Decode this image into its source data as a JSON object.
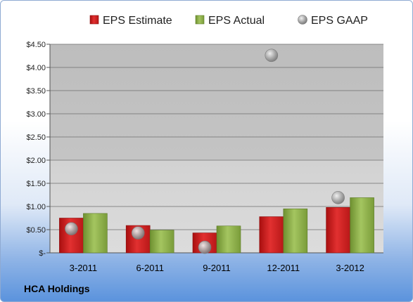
{
  "company": "HCA Holdings",
  "chart_data": {
    "type": "bar",
    "categories": [
      "3-2011",
      "6-2011",
      "9-2011",
      "12-2011",
      "3-2012"
    ],
    "series": [
      {
        "name": "EPS Estimate",
        "kind": "bar",
        "color": "#d42020",
        "values": [
          0.75,
          0.59,
          0.43,
          0.78,
          0.98
        ]
      },
      {
        "name": "EPS Actual",
        "kind": "bar",
        "color": "#8cb040",
        "values": [
          0.85,
          0.49,
          0.58,
          0.95,
          1.19
        ]
      },
      {
        "name": "EPS GAAP",
        "kind": "point",
        "color": "#a8a8a8",
        "values": [
          0.52,
          0.43,
          0.12,
          4.26,
          1.19
        ]
      }
    ],
    "yticks": [
      "$-",
      "$0.50",
      "$1.00",
      "$1.50",
      "$2.00",
      "$2.50",
      "$3.00",
      "$3.50",
      "$4.00",
      "$4.50"
    ],
    "ylim": [
      0,
      4.5
    ],
    "grid": true,
    "legend_position": "top"
  }
}
